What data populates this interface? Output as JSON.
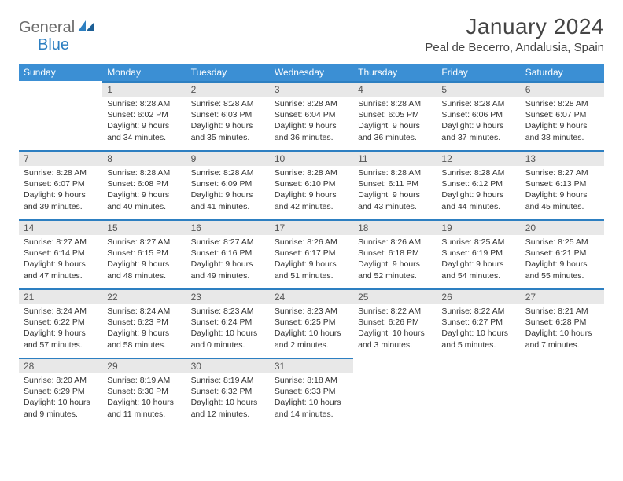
{
  "logo": {
    "general": "General",
    "blue": "Blue"
  },
  "title": "January 2024",
  "location": "Peal de Becerro, Andalusia, Spain",
  "colors": {
    "header_bg": "#3b8fd4",
    "header_text": "#ffffff",
    "daynum_bg": "#e8e8e8",
    "daynum_border": "#2d7fc1",
    "body_bg": "#ffffff",
    "text": "#333333",
    "logo_gray": "#6c6c6c",
    "logo_blue": "#2d7fc1"
  },
  "weekdays": [
    "Sunday",
    "Monday",
    "Tuesday",
    "Wednesday",
    "Thursday",
    "Friday",
    "Saturday"
  ],
  "weeks": [
    [
      null,
      {
        "n": "1",
        "sr": "8:28 AM",
        "ss": "6:02 PM",
        "dl": "9 hours and 34 minutes."
      },
      {
        "n": "2",
        "sr": "8:28 AM",
        "ss": "6:03 PM",
        "dl": "9 hours and 35 minutes."
      },
      {
        "n": "3",
        "sr": "8:28 AM",
        "ss": "6:04 PM",
        "dl": "9 hours and 36 minutes."
      },
      {
        "n": "4",
        "sr": "8:28 AM",
        "ss": "6:05 PM",
        "dl": "9 hours and 36 minutes."
      },
      {
        "n": "5",
        "sr": "8:28 AM",
        "ss": "6:06 PM",
        "dl": "9 hours and 37 minutes."
      },
      {
        "n": "6",
        "sr": "8:28 AM",
        "ss": "6:07 PM",
        "dl": "9 hours and 38 minutes."
      }
    ],
    [
      {
        "n": "7",
        "sr": "8:28 AM",
        "ss": "6:07 PM",
        "dl": "9 hours and 39 minutes."
      },
      {
        "n": "8",
        "sr": "8:28 AM",
        "ss": "6:08 PM",
        "dl": "9 hours and 40 minutes."
      },
      {
        "n": "9",
        "sr": "8:28 AM",
        "ss": "6:09 PM",
        "dl": "9 hours and 41 minutes."
      },
      {
        "n": "10",
        "sr": "8:28 AM",
        "ss": "6:10 PM",
        "dl": "9 hours and 42 minutes."
      },
      {
        "n": "11",
        "sr": "8:28 AM",
        "ss": "6:11 PM",
        "dl": "9 hours and 43 minutes."
      },
      {
        "n": "12",
        "sr": "8:28 AM",
        "ss": "6:12 PM",
        "dl": "9 hours and 44 minutes."
      },
      {
        "n": "13",
        "sr": "8:27 AM",
        "ss": "6:13 PM",
        "dl": "9 hours and 45 minutes."
      }
    ],
    [
      {
        "n": "14",
        "sr": "8:27 AM",
        "ss": "6:14 PM",
        "dl": "9 hours and 47 minutes."
      },
      {
        "n": "15",
        "sr": "8:27 AM",
        "ss": "6:15 PM",
        "dl": "9 hours and 48 minutes."
      },
      {
        "n": "16",
        "sr": "8:27 AM",
        "ss": "6:16 PM",
        "dl": "9 hours and 49 minutes."
      },
      {
        "n": "17",
        "sr": "8:26 AM",
        "ss": "6:17 PM",
        "dl": "9 hours and 51 minutes."
      },
      {
        "n": "18",
        "sr": "8:26 AM",
        "ss": "6:18 PM",
        "dl": "9 hours and 52 minutes."
      },
      {
        "n": "19",
        "sr": "8:25 AM",
        "ss": "6:19 PM",
        "dl": "9 hours and 54 minutes."
      },
      {
        "n": "20",
        "sr": "8:25 AM",
        "ss": "6:21 PM",
        "dl": "9 hours and 55 minutes."
      }
    ],
    [
      {
        "n": "21",
        "sr": "8:24 AM",
        "ss": "6:22 PM",
        "dl": "9 hours and 57 minutes."
      },
      {
        "n": "22",
        "sr": "8:24 AM",
        "ss": "6:23 PM",
        "dl": "9 hours and 58 minutes."
      },
      {
        "n": "23",
        "sr": "8:23 AM",
        "ss": "6:24 PM",
        "dl": "10 hours and 0 minutes."
      },
      {
        "n": "24",
        "sr": "8:23 AM",
        "ss": "6:25 PM",
        "dl": "10 hours and 2 minutes."
      },
      {
        "n": "25",
        "sr": "8:22 AM",
        "ss": "6:26 PM",
        "dl": "10 hours and 3 minutes."
      },
      {
        "n": "26",
        "sr": "8:22 AM",
        "ss": "6:27 PM",
        "dl": "10 hours and 5 minutes."
      },
      {
        "n": "27",
        "sr": "8:21 AM",
        "ss": "6:28 PM",
        "dl": "10 hours and 7 minutes."
      }
    ],
    [
      {
        "n": "28",
        "sr": "8:20 AM",
        "ss": "6:29 PM",
        "dl": "10 hours and 9 minutes."
      },
      {
        "n": "29",
        "sr": "8:19 AM",
        "ss": "6:30 PM",
        "dl": "10 hours and 11 minutes."
      },
      {
        "n": "30",
        "sr": "8:19 AM",
        "ss": "6:32 PM",
        "dl": "10 hours and 12 minutes."
      },
      {
        "n": "31",
        "sr": "8:18 AM",
        "ss": "6:33 PM",
        "dl": "10 hours and 14 minutes."
      },
      null,
      null,
      null
    ]
  ],
  "labels": {
    "sunrise": "Sunrise: ",
    "sunset": "Sunset: ",
    "daylight": "Daylight: "
  }
}
